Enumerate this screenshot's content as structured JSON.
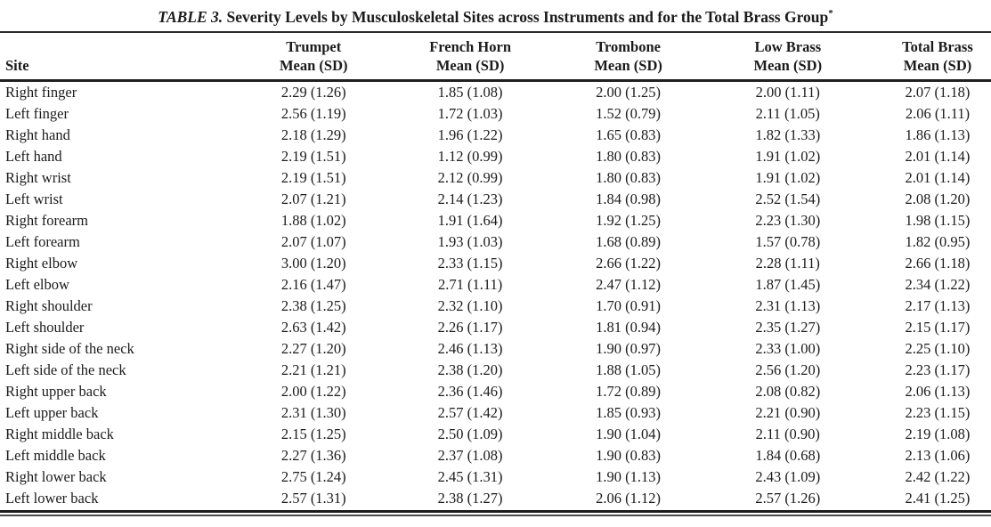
{
  "title": {
    "label": "TABLE 3.",
    "text": " Severity Levels by Musculoskeletal Sites across Instruments and for the Total Brass Group",
    "footnote_marker": "*"
  },
  "table": {
    "columns": [
      {
        "label": "Site",
        "sublabel": ""
      },
      {
        "label": "Trumpet",
        "sublabel": "Mean (SD)"
      },
      {
        "label": "French Horn",
        "sublabel": "Mean (SD)"
      },
      {
        "label": "Trombone",
        "sublabel": "Mean (SD)"
      },
      {
        "label": "Low Brass",
        "sublabel": "Mean (SD)"
      },
      {
        "label": "Total Brass",
        "sublabel": "Mean (SD)"
      }
    ],
    "rows": [
      {
        "site": "Right finger",
        "values": [
          "2.29 (1.26)",
          "1.85 (1.08)",
          "2.00 (1.25)",
          "2.00 (1.11)",
          "2.07 (1.18)"
        ]
      },
      {
        "site": "Left finger",
        "values": [
          "2.56 (1.19)",
          "1.72 (1.03)",
          "1.52 (0.79)",
          "2.11 (1.05)",
          "2.06 (1.11)"
        ]
      },
      {
        "site": "Right hand",
        "values": [
          "2.18 (1.29)",
          "1.96 (1.22)",
          "1.65 (0.83)",
          "1.82 (1.33)",
          "1.86 (1.13)"
        ]
      },
      {
        "site": "Left hand",
        "values": [
          "2.19 (1.51)",
          "1.12 (0.99)",
          "1.80 (0.83)",
          "1.91 (1.02)",
          "2.01 (1.14)"
        ]
      },
      {
        "site": "Right wrist",
        "values": [
          "2.19 (1.51)",
          "2.12 (0.99)",
          "1.80 (0.83)",
          "1.91 (1.02)",
          "2.01 (1.14)"
        ]
      },
      {
        "site": "Left wrist",
        "values": [
          "2.07 (1.21)",
          "2.14 (1.23)",
          "1.84 (0.98)",
          "2.52 (1.54)",
          "2.08 (1.20)"
        ]
      },
      {
        "site": "Right forearm",
        "values": [
          "1.88 (1.02)",
          "1.91 (1.64)",
          "1.92 (1.25)",
          "2.23 (1.30)",
          "1.98 (1.15)"
        ]
      },
      {
        "site": "Left forearm",
        "values": [
          "2.07 (1.07)",
          "1.93 (1.03)",
          "1.68 (0.89)",
          "1.57 (0.78)",
          "1.82 (0.95)"
        ]
      },
      {
        "site": "Right elbow",
        "values": [
          "3.00 (1.20)",
          "2.33 (1.15)",
          "2.66 (1.22)",
          "2.28 (1.11)",
          "2.66 (1.18)"
        ]
      },
      {
        "site": "Left elbow",
        "values": [
          "2.16 (1.47)",
          "2.71 (1.11)",
          "2.47 (1.12)",
          "1.87 (1.45)",
          "2.34 (1.22)"
        ]
      },
      {
        "site": "Right shoulder",
        "values": [
          "2.38 (1.25)",
          "2.32 (1.10)",
          "1.70 (0.91)",
          "2.31 (1.13)",
          "2.17 (1.13)"
        ]
      },
      {
        "site": "Left shoulder",
        "values": [
          "2.63 (1.42)",
          "2.26 (1.17)",
          "1.81 (0.94)",
          "2.35 (1.27)",
          "2.15 (1.17)"
        ]
      },
      {
        "site": "Right side of the neck",
        "values": [
          "2.27 (1.20)",
          "2.46 (1.13)",
          "1.90 (0.97)",
          "2.33 (1.00)",
          "2.25 (1.10)"
        ]
      },
      {
        "site": "Left side of the neck",
        "values": [
          "2.21 (1.21)",
          "2.38 (1.20)",
          "1.88 (1.05)",
          "2.56 (1.20)",
          "2.23 (1.17)"
        ]
      },
      {
        "site": "Right upper back",
        "values": [
          "2.00 (1.22)",
          "2.36 (1.46)",
          "1.72 (0.89)",
          "2.08 (0.82)",
          "2.06 (1.13)"
        ]
      },
      {
        "site": "Left upper back",
        "values": [
          "2.31 (1.30)",
          "2.57 (1.42)",
          "1.85 (0.93)",
          "2.21 (0.90)",
          "2.23 (1.15)"
        ]
      },
      {
        "site": "Right middle back",
        "values": [
          "2.15 (1.25)",
          "2.50 (1.09)",
          "1.90 (1.04)",
          "2.11 (0.90)",
          "2.19 (1.08)"
        ]
      },
      {
        "site": "Left middle back",
        "values": [
          "2.27 (1.36)",
          "2.37 (1.08)",
          "1.90 (0.83)",
          "1.84 (0.68)",
          "2.13 (1.06)"
        ]
      },
      {
        "site": "Right lower back",
        "values": [
          "2.75 (1.24)",
          "2.45 (1.31)",
          "1.90 (1.13)",
          "2.43 (1.09)",
          "2.42 (1.22)"
        ]
      },
      {
        "site": "Left lower back",
        "values": [
          "2.57 (1.31)",
          "2.38 (1.27)",
          "2.06 (1.12)",
          "2.57 (1.26)",
          "2.41 (1.25)"
        ]
      }
    ]
  },
  "colors": {
    "text": "#1b1b1b",
    "rule": "#1f1f1f",
    "background": "#ffffff"
  }
}
